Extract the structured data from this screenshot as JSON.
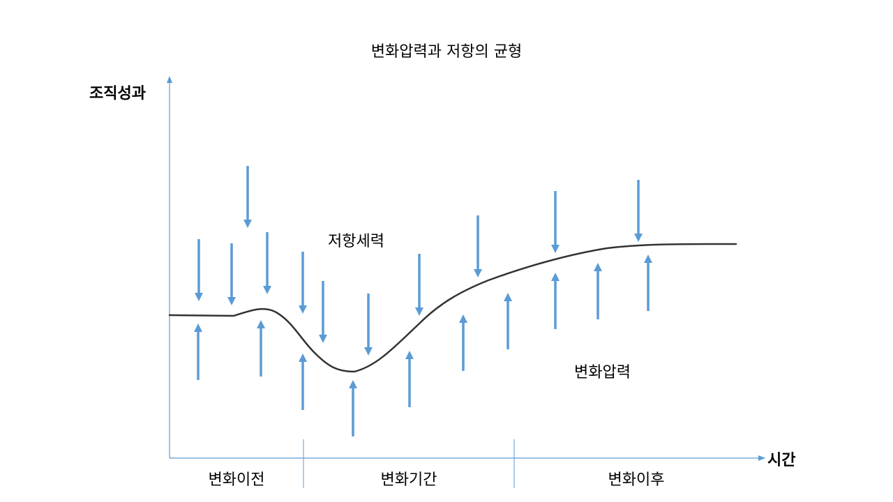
{
  "title": "변화압력과 저항의 균형",
  "axes": {
    "y_label": "조직성과",
    "x_label": "시간"
  },
  "regions": [
    "변화이전",
    "변화기간",
    "변화이후"
  ],
  "labels": {
    "resistance": "저항세력",
    "change_pressure": "변화압력"
  },
  "colors": {
    "axis": "#5b9bd5",
    "arrow": "#5b9bd5",
    "curve": "#333333"
  }
}
